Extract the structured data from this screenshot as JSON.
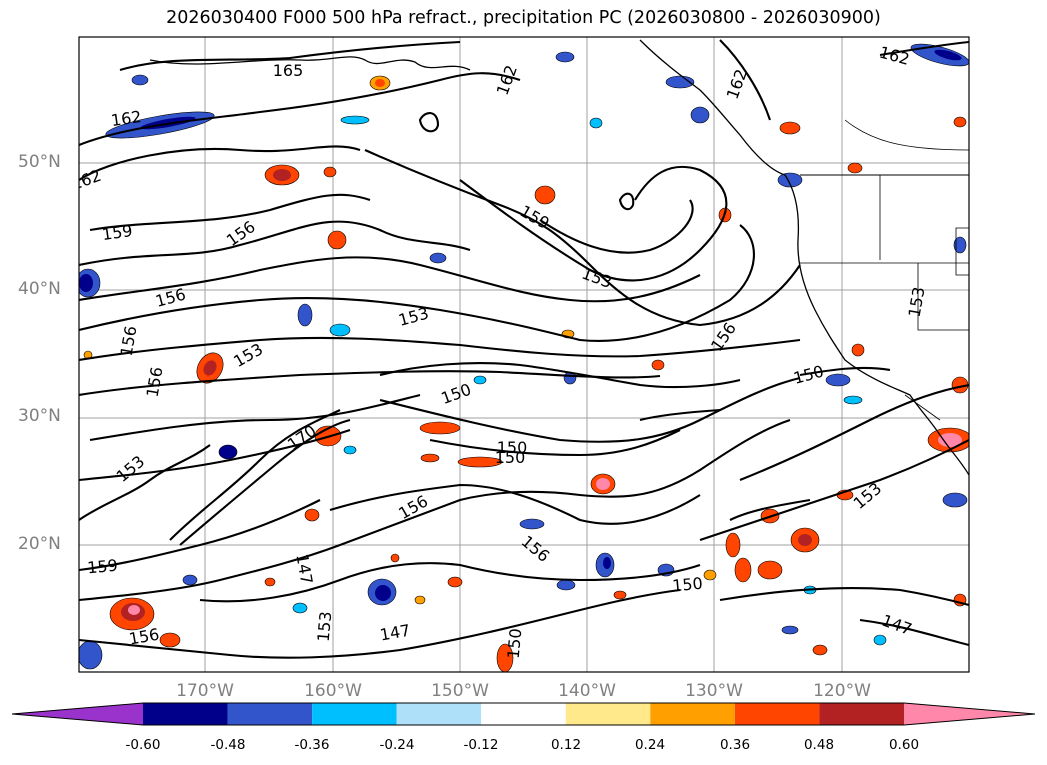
{
  "title": "2026030400 F000 500 hPa refract., precipitation PC (2026030800 - 2026030900)",
  "map": {
    "lat_labels": [
      "50°N",
      "40°N",
      "30°N",
      "20°N"
    ],
    "lon_labels": [
      "170°W",
      "160°W",
      "150°W",
      "140°W",
      "130°W",
      "120°W"
    ],
    "contour_labels": [
      {
        "text": "165",
        "name": "contour-label-165"
      },
      {
        "text": "162",
        "name": "contour-label-162-a"
      },
      {
        "text": "162",
        "name": "contour-label-162-b"
      },
      {
        "text": "162",
        "name": "contour-label-162-c"
      },
      {
        "text": "162",
        "name": "contour-label-162-d"
      },
      {
        "text": "162",
        "name": "contour-label-162-e"
      },
      {
        "text": "159",
        "name": "contour-label-159-a"
      },
      {
        "text": "159",
        "name": "contour-label-159-b"
      },
      {
        "text": "159",
        "name": "contour-label-159-c"
      },
      {
        "text": "156",
        "name": "contour-label-156-a"
      },
      {
        "text": "156",
        "name": "contour-label-156-b"
      },
      {
        "text": "156",
        "name": "contour-label-156-c"
      },
      {
        "text": "156",
        "name": "contour-label-156-d"
      },
      {
        "text": "156",
        "name": "contour-label-156-e"
      },
      {
        "text": "156",
        "name": "contour-label-156-f"
      },
      {
        "text": "156",
        "name": "contour-label-156-g"
      },
      {
        "text": "156",
        "name": "contour-label-156-h"
      },
      {
        "text": "153",
        "name": "contour-label-153-a"
      },
      {
        "text": "153",
        "name": "contour-label-153-b"
      },
      {
        "text": "153",
        "name": "contour-label-153-c"
      },
      {
        "text": "153",
        "name": "contour-label-153-d"
      },
      {
        "text": "153",
        "name": "contour-label-153-e"
      },
      {
        "text": "153",
        "name": "contour-label-153-f"
      },
      {
        "text": "153",
        "name": "contour-label-153-g"
      },
      {
        "text": "150",
        "name": "contour-label-150-a"
      },
      {
        "text": "150",
        "name": "contour-label-150-b"
      },
      {
        "text": "150",
        "name": "contour-label-150-c"
      },
      {
        "text": "150",
        "name": "contour-label-150-d"
      },
      {
        "text": "150",
        "name": "contour-label-150-e"
      },
      {
        "text": "150",
        "name": "contour-label-150-f"
      },
      {
        "text": "147",
        "name": "contour-label-147-a"
      },
      {
        "text": "147",
        "name": "contour-label-147-b"
      },
      {
        "text": "147",
        "name": "contour-label-147-c"
      },
      {
        "text": "170",
        "name": "contour-label-170"
      }
    ]
  },
  "colorbar": {
    "ticks": [
      "-0.60",
      "-0.48",
      "-0.36",
      "-0.24",
      "-0.12",
      "0.12",
      "0.24",
      "0.36",
      "0.48",
      "0.60"
    ],
    "colors": [
      "#9933cc",
      "#00008b",
      "#3355cc",
      "#00bfff",
      "#aee0fa",
      "#ffffff",
      "#ffe98a",
      "#ffa000",
      "#ff4500",
      "#b22222",
      "#ff88aa"
    ]
  }
}
